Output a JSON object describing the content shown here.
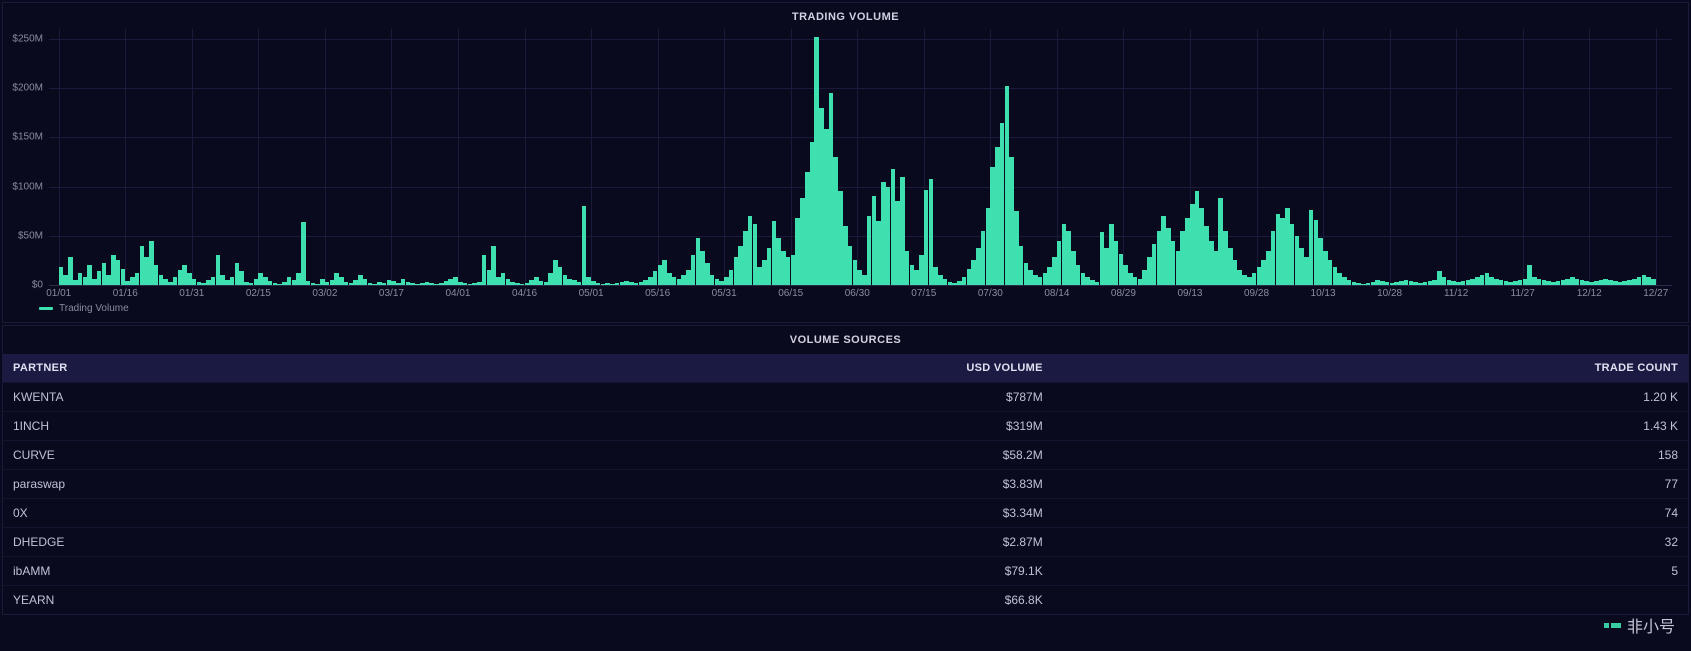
{
  "chart": {
    "title": "TRADING VOLUME",
    "type": "bar",
    "legend_label": "Trading Volume",
    "bar_color": "#3fe0b0",
    "background_color": "#0a0a1f",
    "grid_color": "#1a1a3a",
    "axis_text_color": "#8a8aa0",
    "title_color": "#d0d0e0",
    "title_fontsize": 11,
    "tick_fontsize": 10,
    "y_axis": {
      "min": 0,
      "max": 260,
      "ticks": [
        0,
        50,
        100,
        150,
        200,
        250
      ],
      "tick_labels": [
        "$0",
        "$50M",
        "$100M",
        "$150M",
        "$200M",
        "$250M"
      ]
    },
    "x_axis": {
      "tick_labels": [
        "01/01",
        "01/16",
        "01/31",
        "02/15",
        "03/02",
        "03/17",
        "04/01",
        "04/16",
        "05/01",
        "05/16",
        "05/31",
        "06/15",
        "06/30",
        "07/15",
        "07/30",
        "08/14",
        "08/29",
        "09/13",
        "09/28",
        "10/13",
        "10/28",
        "11/12",
        "11/27",
        "12/12",
        "12/27"
      ],
      "tick_positions_pct": [
        0.6,
        4.7,
        8.8,
        12.9,
        17.0,
        21.1,
        25.2,
        29.3,
        33.4,
        37.5,
        41.6,
        45.7,
        49.8,
        53.9,
        58.0,
        62.1,
        66.2,
        70.3,
        74.4,
        78.5,
        82.6,
        86.7,
        90.8,
        94.9,
        99.0
      ]
    },
    "values": [
      18,
      10,
      28,
      5,
      12,
      8,
      20,
      6,
      14,
      22,
      10,
      30,
      25,
      16,
      4,
      8,
      12,
      40,
      28,
      45,
      20,
      10,
      6,
      3,
      8,
      15,
      20,
      12,
      6,
      3,
      2,
      5,
      8,
      30,
      10,
      5,
      8,
      22,
      14,
      3,
      2,
      6,
      12,
      8,
      4,
      2,
      1,
      3,
      8,
      5,
      12,
      64,
      4,
      2,
      1,
      6,
      3,
      5,
      12,
      8,
      3,
      2,
      5,
      10,
      6,
      2,
      1,
      3,
      2,
      5,
      4,
      2,
      6,
      3,
      2,
      1,
      2,
      3,
      2,
      1,
      2,
      4,
      6,
      8,
      3,
      2,
      1,
      2,
      3,
      30,
      15,
      40,
      8,
      12,
      6,
      3,
      2,
      1,
      2,
      5,
      8,
      4,
      3,
      12,
      25,
      18,
      10,
      6,
      5,
      3,
      80,
      8,
      4,
      2,
      1,
      2,
      1,
      2,
      3,
      4,
      3,
      2,
      3,
      5,
      8,
      14,
      20,
      25,
      12,
      8,
      6,
      10,
      15,
      30,
      48,
      35,
      22,
      10,
      6,
      4,
      8,
      15,
      28,
      40,
      55,
      70,
      62,
      18,
      25,
      38,
      65,
      48,
      35,
      28,
      30,
      68,
      88,
      115,
      145,
      252,
      180,
      158,
      195,
      130,
      95,
      60,
      40,
      25,
      15,
      10,
      70,
      90,
      65,
      105,
      100,
      118,
      85,
      110,
      35,
      20,
      15,
      30,
      96,
      108,
      18,
      10,
      6,
      3,
      2,
      4,
      8,
      16,
      25,
      38,
      55,
      78,
      120,
      140,
      165,
      202,
      130,
      75,
      40,
      22,
      15,
      10,
      8,
      12,
      18,
      28,
      45,
      62,
      55,
      35,
      20,
      12,
      8,
      5,
      3,
      54,
      38,
      62,
      45,
      32,
      20,
      12,
      8,
      6,
      15,
      28,
      42,
      55,
      70,
      58,
      45,
      35,
      55,
      68,
      82,
      95,
      78,
      60,
      45,
      35,
      88,
      55,
      38,
      25,
      15,
      10,
      8,
      12,
      18,
      25,
      35,
      55,
      72,
      68,
      78,
      62,
      50,
      38,
      28,
      76,
      66,
      48,
      35,
      25,
      18,
      12,
      8,
      5,
      3,
      2,
      1,
      2,
      3,
      5,
      4,
      3,
      2,
      3,
      4,
      5,
      4,
      3,
      2,
      3,
      4,
      5,
      14,
      8,
      5,
      4,
      3,
      4,
      5,
      6,
      8,
      10,
      12,
      8,
      6,
      5,
      4,
      3,
      4,
      5,
      6,
      20,
      8,
      6,
      5,
      4,
      3,
      4,
      5,
      6,
      8,
      6,
      5,
      4,
      3,
      4,
      5,
      6,
      5,
      4,
      3,
      4,
      5,
      6,
      8,
      10,
      8,
      6
    ],
    "bar_width_pct": 0.28
  },
  "table": {
    "title": "VOLUME SOURCES",
    "header_bg": "#1a1a42",
    "row_border": "#151532",
    "columns": [
      {
        "key": "partner",
        "label": "PARTNER",
        "align": "left"
      },
      {
        "key": "usd_volume",
        "label": "USD VOLUME",
        "align": "right"
      },
      {
        "key": "trade_count",
        "label": "TRADE COUNT",
        "align": "right"
      }
    ],
    "rows": [
      {
        "partner": "KWENTA",
        "usd_volume": "$787M",
        "trade_count": "1.20 K"
      },
      {
        "partner": "1INCH",
        "usd_volume": "$319M",
        "trade_count": "1.43 K"
      },
      {
        "partner": "CURVE",
        "usd_volume": "$58.2M",
        "trade_count": "158"
      },
      {
        "partner": "paraswap",
        "usd_volume": "$3.83M",
        "trade_count": "77"
      },
      {
        "partner": "0X",
        "usd_volume": "$3.34M",
        "trade_count": "74"
      },
      {
        "partner": "DHEDGE",
        "usd_volume": "$2.87M",
        "trade_count": "32"
      },
      {
        "partner": "ibAMM",
        "usd_volume": "$79.1K",
        "trade_count": "5"
      },
      {
        "partner": "YEARN",
        "usd_volume": "$66.8K",
        "trade_count": ""
      }
    ]
  },
  "watermark": {
    "text": "非小号"
  }
}
